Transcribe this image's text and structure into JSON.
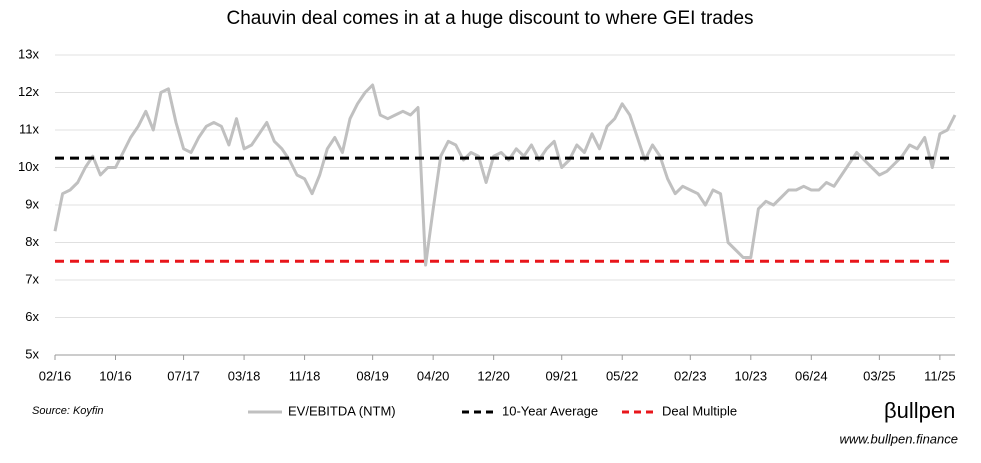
{
  "chart_data": {
    "type": "line",
    "title": "Chauvin deal comes in at a huge discount to where GEI trades",
    "categories": [
      "02/16",
      null,
      null,
      null,
      null,
      null,
      null,
      null,
      "10/16",
      null,
      null,
      null,
      null,
      null,
      null,
      null,
      null,
      "07/17",
      null,
      null,
      null,
      null,
      null,
      null,
      null,
      "03/18",
      null,
      null,
      null,
      null,
      null,
      null,
      null,
      "11/18",
      null,
      null,
      null,
      null,
      null,
      null,
      null,
      null,
      "08/19",
      null,
      null,
      null,
      null,
      null,
      null,
      null,
      "04/20",
      null,
      null,
      null,
      null,
      null,
      null,
      null,
      "12/20",
      null,
      null,
      null,
      null,
      null,
      null,
      null,
      null,
      "09/21",
      null,
      null,
      null,
      null,
      null,
      null,
      null,
      "05/22",
      null,
      null,
      null,
      null,
      null,
      null,
      null,
      null,
      "02/23",
      null,
      null,
      null,
      null,
      null,
      null,
      null,
      "10/23",
      null,
      null,
      null,
      null,
      null,
      null,
      null,
      "06/24",
      null,
      null,
      null,
      null,
      null,
      null,
      null,
      null,
      "03/25",
      null,
      null,
      null,
      null,
      null,
      null,
      null,
      "11/25",
      null,
      null
    ],
    "series": [
      {
        "name": "EV/EBITDA (NTM)",
        "color": "#c0c0c0",
        "values": [
          8.3,
          9.3,
          9.4,
          9.6,
          10.0,
          10.3,
          9.8,
          10.0,
          10.0,
          10.4,
          10.8,
          11.1,
          11.5,
          11.0,
          12.0,
          12.1,
          11.2,
          10.5,
          10.4,
          10.8,
          11.1,
          11.2,
          11.1,
          10.6,
          11.3,
          10.5,
          10.6,
          10.9,
          11.2,
          10.7,
          10.5,
          10.2,
          9.8,
          9.7,
          9.3,
          9.8,
          10.5,
          10.8,
          10.4,
          11.3,
          11.7,
          12.0,
          12.2,
          11.4,
          11.3,
          11.4,
          11.5,
          11.4,
          11.6,
          7.4,
          8.9,
          10.3,
          10.7,
          10.6,
          10.2,
          10.4,
          10.3,
          9.6,
          10.3,
          10.4,
          10.2,
          10.5,
          10.3,
          10.6,
          10.2,
          10.5,
          10.7,
          10.0,
          10.2,
          10.6,
          10.4,
          10.9,
          10.5,
          11.1,
          11.3,
          11.7,
          11.4,
          10.8,
          10.2,
          10.6,
          10.3,
          9.7,
          9.3,
          9.5,
          9.4,
          9.3,
          9.0,
          9.4,
          9.3,
          8.0,
          7.8,
          7.6,
          7.6,
          8.9,
          9.1,
          9.0,
          9.2,
          9.4,
          9.4,
          9.5,
          9.4,
          9.4,
          9.6,
          9.5,
          9.8,
          10.1,
          10.4,
          10.2,
          10.0,
          9.8,
          9.9,
          10.1,
          10.3,
          10.6,
          10.5,
          10.8,
          10.0,
          10.9,
          11.0,
          11.4
        ]
      }
    ],
    "reference_lines": [
      {
        "name": "10-Year Average",
        "value": 10.25,
        "color": "#000000"
      },
      {
        "name": "Deal Multiple",
        "value": 7.5,
        "color": "#e8161b"
      }
    ],
    "ylim": [
      5,
      13
    ],
    "yticks": [
      {
        "value": 5,
        "label": "5x"
      },
      {
        "value": 6,
        "label": "6x"
      },
      {
        "value": 7,
        "label": "7x"
      },
      {
        "value": 8,
        "label": "8x"
      },
      {
        "value": 9,
        "label": "9x"
      },
      {
        "value": 10,
        "label": "10x"
      },
      {
        "value": 11,
        "label": "11x"
      },
      {
        "value": 12,
        "label": "12x"
      },
      {
        "value": 13,
        "label": "13x"
      }
    ],
    "grid": true,
    "source": "Source: Koyfin",
    "brand": "βullpen",
    "website": "www.bullpen.finance"
  }
}
